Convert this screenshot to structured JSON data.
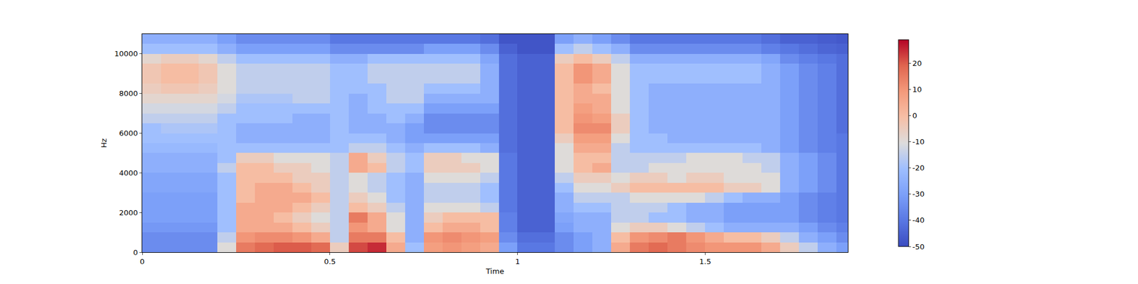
{
  "chart_data": {
    "type": "heatmap",
    "x_label": "Time",
    "y_label": "Hz",
    "x": [
      0.025,
      0.075,
      0.125,
      0.175,
      0.225,
      0.275,
      0.325,
      0.375,
      0.425,
      0.475,
      0.525,
      0.575,
      0.625,
      0.675,
      0.725,
      0.775,
      0.825,
      0.875,
      0.925,
      0.975,
      1.025,
      1.075,
      1.125,
      1.175,
      1.225,
      1.275,
      1.325,
      1.375,
      1.425,
      1.475,
      1.525,
      1.575,
      1.625,
      1.675,
      1.725,
      1.775,
      1.825,
      1.875
    ],
    "y": [
      250,
      750,
      1250,
      1750,
      2250,
      2750,
      3250,
      3750,
      4250,
      4750,
      5250,
      5750,
      6250,
      6750,
      7250,
      7750,
      8250,
      8750,
      9250,
      9750,
      10250,
      10750
    ],
    "z": [
      [
        -35,
        -35,
        -35,
        -35,
        -10,
        15,
        18,
        20,
        20,
        18,
        -5,
        22,
        25,
        5,
        -20,
        8,
        10,
        8,
        5,
        -30,
        -40,
        -40,
        -35,
        -30,
        -25,
        5,
        15,
        18,
        15,
        12,
        10,
        10,
        10,
        5,
        -5,
        -15,
        -25,
        -30
      ],
      [
        -35,
        -35,
        -35,
        -35,
        -15,
        10,
        12,
        12,
        10,
        5,
        -15,
        15,
        15,
        0,
        -25,
        10,
        12,
        10,
        8,
        -35,
        -42,
        -42,
        -35,
        -30,
        -25,
        0,
        10,
        12,
        15,
        10,
        5,
        0,
        0,
        -5,
        -15,
        -25,
        -30,
        -35
      ],
      [
        -32,
        -32,
        -32,
        -32,
        -20,
        5,
        5,
        5,
        0,
        -5,
        -15,
        10,
        5,
        -10,
        -25,
        0,
        5,
        5,
        0,
        -38,
        -45,
        -45,
        -30,
        -25,
        -25,
        -10,
        -5,
        -5,
        -10,
        -15,
        -20,
        -25,
        -25,
        -25,
        -25,
        -30,
        -35,
        -38
      ],
      [
        -30,
        -30,
        -30,
        -30,
        -20,
        5,
        5,
        0,
        -5,
        -10,
        -15,
        15,
        5,
        -10,
        -25,
        -5,
        0,
        0,
        0,
        -38,
        -45,
        -45,
        -28,
        -25,
        -25,
        -15,
        -15,
        -20,
        -20,
        -25,
        -25,
        -30,
        -30,
        -30,
        -30,
        -35,
        -38,
        -40
      ],
      [
        -30,
        -30,
        -30,
        -30,
        -20,
        5,
        5,
        5,
        0,
        -5,
        -15,
        0,
        -5,
        -15,
        -25,
        -10,
        -10,
        -10,
        -15,
        -40,
        -45,
        -45,
        -25,
        -20,
        -20,
        -15,
        -15,
        -15,
        -20,
        -25,
        -25,
        -30,
        -30,
        -30,
        -30,
        -35,
        -38,
        -40
      ],
      [
        -30,
        -30,
        -30,
        -30,
        -20,
        0,
        5,
        5,
        5,
        0,
        -15,
        -5,
        -10,
        -20,
        -25,
        -15,
        -15,
        -15,
        -20,
        -40,
        -45,
        -45,
        -25,
        -15,
        -15,
        -15,
        -10,
        -10,
        -10,
        -10,
        -15,
        -20,
        -25,
        -25,
        -30,
        -35,
        -38,
        -40
      ],
      [
        -28,
        -28,
        -28,
        -28,
        -20,
        0,
        5,
        5,
        0,
        -5,
        -15,
        -10,
        -15,
        -20,
        -25,
        -15,
        -15,
        -15,
        -20,
        -40,
        -45,
        -45,
        -20,
        -10,
        -10,
        -5,
        0,
        0,
        0,
        0,
        0,
        -5,
        -5,
        -10,
        -25,
        -30,
        -35,
        -40
      ],
      [
        -28,
        -28,
        -28,
        -28,
        -20,
        0,
        0,
        0,
        -5,
        -5,
        -15,
        -10,
        -15,
        -20,
        -25,
        -10,
        -10,
        -10,
        -15,
        -40,
        -45,
        -45,
        -15,
        -5,
        -5,
        -10,
        -5,
        -5,
        -10,
        -5,
        -5,
        -10,
        -10,
        -10,
        -25,
        -30,
        -35,
        -40
      ],
      [
        -25,
        -25,
        -25,
        -25,
        -15,
        0,
        0,
        -5,
        -5,
        -10,
        -15,
        5,
        0,
        -15,
        -20,
        -5,
        -5,
        -5,
        -10,
        -40,
        -45,
        -45,
        -10,
        0,
        5,
        -15,
        -15,
        -10,
        -10,
        -10,
        -10,
        -10,
        -10,
        -15,
        -25,
        -30,
        -35,
        -40
      ],
      [
        -25,
        -25,
        -25,
        -25,
        -20,
        -5,
        -5,
        -10,
        -10,
        -10,
        -15,
        5,
        -5,
        -15,
        -20,
        -5,
        -5,
        -10,
        -10,
        -40,
        -45,
        -45,
        -10,
        0,
        0,
        -15,
        -15,
        -15,
        -15,
        -10,
        -10,
        -10,
        -15,
        -15,
        -25,
        -30,
        -35,
        -40
      ],
      [
        -22,
        -22,
        -22,
        -22,
        -20,
        -20,
        -20,
        -20,
        -20,
        -20,
        -20,
        -15,
        -15,
        -20,
        -25,
        -20,
        -20,
        -20,
        -25,
        -42,
        -45,
        -45,
        -10,
        5,
        5,
        -15,
        -20,
        -20,
        -20,
        -20,
        -20,
        -20,
        -20,
        -25,
        -30,
        -35,
        -38,
        -40
      ],
      [
        -20,
        -20,
        -20,
        -20,
        -20,
        -25,
        -25,
        -25,
        -25,
        -25,
        -20,
        -20,
        -20,
        -25,
        -30,
        -30,
        -30,
        -30,
        -30,
        -42,
        -45,
        -45,
        -5,
        8,
        8,
        -10,
        -20,
        -20,
        -25,
        -25,
        -25,
        -25,
        -25,
        -25,
        -30,
        -35,
        -38,
        -40
      ],
      [
        -20,
        -18,
        -18,
        -18,
        -20,
        -25,
        -25,
        -25,
        -25,
        -25,
        -20,
        -25,
        -25,
        -25,
        -30,
        -35,
        -35,
        -35,
        -35,
        -42,
        -45,
        -45,
        0,
        12,
        12,
        -5,
        -20,
        -25,
        -25,
        -25,
        -25,
        -25,
        -25,
        -25,
        -30,
        -35,
        -38,
        -42
      ],
      [
        -15,
        -15,
        -15,
        -15,
        -20,
        -20,
        -20,
        -20,
        -25,
        -25,
        -20,
        -25,
        -25,
        -20,
        -25,
        -35,
        -35,
        -35,
        -35,
        -42,
        -45,
        -45,
        0,
        10,
        8,
        -5,
        -20,
        -25,
        -25,
        -25,
        -25,
        -25,
        -25,
        -25,
        -30,
        -35,
        -38,
        -42
      ],
      [
        -12,
        -12,
        -12,
        -12,
        -15,
        -20,
        -20,
        -20,
        -20,
        -20,
        -20,
        -25,
        -20,
        -20,
        -20,
        -30,
        -30,
        -30,
        -30,
        -42,
        -45,
        -45,
        0,
        8,
        5,
        -10,
        -20,
        -25,
        -25,
        -25,
        -25,
        -25,
        -25,
        -25,
        -30,
        -35,
        -38,
        -42
      ],
      [
        -8,
        -8,
        -8,
        -8,
        -12,
        -18,
        -18,
        -18,
        -15,
        -15,
        -20,
        -25,
        -20,
        -15,
        -15,
        -25,
        -25,
        -25,
        -25,
        -42,
        -45,
        -45,
        0,
        5,
        5,
        -10,
        -20,
        -25,
        -25,
        -25,
        -25,
        -25,
        -25,
        -25,
        -30,
        -35,
        -38,
        -42
      ],
      [
        -5,
        -3,
        -3,
        -5,
        -10,
        -15,
        -15,
        -15,
        -15,
        -15,
        -20,
        -20,
        -20,
        -15,
        -15,
        -20,
        -20,
        -20,
        -25,
        -42,
        -45,
        -45,
        0,
        5,
        0,
        -10,
        -20,
        -25,
        -25,
        -25,
        -25,
        -25,
        -25,
        -25,
        -30,
        -35,
        -38,
        -42
      ],
      [
        -3,
        0,
        0,
        -3,
        -10,
        -15,
        -15,
        -15,
        -15,
        -15,
        -20,
        -20,
        -15,
        -15,
        -15,
        -15,
        -15,
        -15,
        -25,
        -42,
        -45,
        -45,
        0,
        10,
        5,
        -10,
        -20,
        -20,
        -20,
        -20,
        -20,
        -20,
        -20,
        -25,
        -30,
        -35,
        -38,
        -42
      ],
      [
        -3,
        0,
        0,
        -3,
        -10,
        -15,
        -15,
        -15,
        -15,
        -15,
        -20,
        -20,
        -15,
        -15,
        -15,
        -15,
        -15,
        -15,
        -25,
        -42,
        -45,
        -45,
        0,
        10,
        5,
        -10,
        -20,
        -20,
        -20,
        -20,
        -20,
        -20,
        -20,
        -25,
        -30,
        -35,
        -38,
        -42
      ],
      [
        -8,
        -5,
        -5,
        -8,
        -15,
        -20,
        -20,
        -20,
        -20,
        -20,
        -25,
        -25,
        -20,
        -20,
        -20,
        -20,
        -20,
        -20,
        -28,
        -42,
        -45,
        -45,
        -5,
        0,
        -5,
        -15,
        -25,
        -25,
        -25,
        -25,
        -25,
        -25,
        -25,
        -28,
        -35,
        -38,
        -40,
        -42
      ],
      [
        -20,
        -20,
        -20,
        -20,
        -25,
        -30,
        -30,
        -30,
        -30,
        -30,
        -35,
        -35,
        -35,
        -35,
        -35,
        -30,
        -30,
        -30,
        -35,
        -45,
        -48,
        -48,
        -20,
        -15,
        -20,
        -25,
        -35,
        -35,
        -35,
        -35,
        -35,
        -35,
        -35,
        -38,
        -40,
        -42,
        -44,
        -45
      ],
      [
        -25,
        -25,
        -25,
        -25,
        -30,
        -35,
        -35,
        -35,
        -35,
        -35,
        -40,
        -40,
        -40,
        -40,
        -40,
        -40,
        -40,
        -40,
        -42,
        -48,
        -48,
        -48,
        -30,
        -25,
        -30,
        -35,
        -40,
        -40,
        -40,
        -40,
        -40,
        -40,
        -40,
        -42,
        -45,
        -45,
        -46,
        -47
      ]
    ],
    "xlim": [
      0,
      1.88
    ],
    "xticks": [
      0,
      0.5,
      1,
      1.5
    ],
    "ylim": [
      0,
      11000
    ],
    "yticks": [
      0,
      2000,
      4000,
      6000,
      8000,
      10000
    ],
    "zlim": [
      -50,
      29
    ],
    "zticks": [
      -50,
      -40,
      -30,
      -20,
      -10,
      0,
      10,
      20
    ]
  }
}
